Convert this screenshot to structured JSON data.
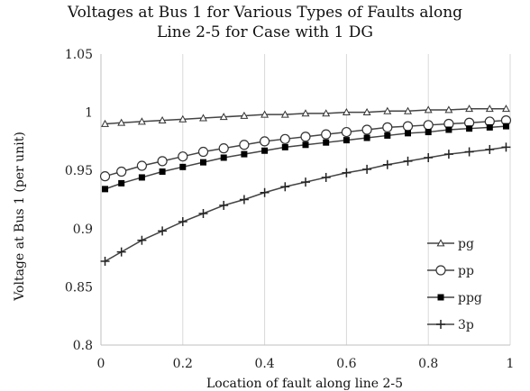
{
  "chart_data": {
    "type": "line",
    "title": [
      "Voltages at Bus 1 for Various Types of  Faults along",
      "Line 2-5 for Case  with 1 DG"
    ],
    "xlabel": "Location of fault along line 2-5",
    "ylabel": "Voltage at Bus 1 (per unit)",
    "xlim": [
      0,
      1
    ],
    "ylim": [
      0.8,
      1.05
    ],
    "x_ticks": [
      "0",
      "0.2",
      "0.4",
      "0.6",
      "0.8",
      "1"
    ],
    "y_ticks": [
      "0.8",
      "0.85",
      "0.9",
      "0.95",
      "1",
      "1.05"
    ],
    "grid": "vertical",
    "legend_position": "bottom-right",
    "x": [
      0.01,
      0.05,
      0.1,
      0.15,
      0.2,
      0.25,
      0.3,
      0.35,
      0.4,
      0.45,
      0.5,
      0.55,
      0.6,
      0.65,
      0.7,
      0.75,
      0.8,
      0.85,
      0.9,
      0.95,
      0.99
    ],
    "series": [
      {
        "name": "pg",
        "marker": "triangle-open",
        "values": [
          0.99,
          0.991,
          0.992,
          0.993,
          0.994,
          0.995,
          0.996,
          0.997,
          0.998,
          0.998,
          0.999,
          0.999,
          1.0,
          1.0,
          1.001,
          1.001,
          1.002,
          1.002,
          1.003,
          1.003,
          1.003
        ]
      },
      {
        "name": "pp",
        "marker": "circle-open",
        "values": [
          0.945,
          0.949,
          0.954,
          0.958,
          0.962,
          0.966,
          0.969,
          0.972,
          0.975,
          0.977,
          0.979,
          0.981,
          0.983,
          0.985,
          0.987,
          0.988,
          0.989,
          0.99,
          0.991,
          0.992,
          0.993
        ]
      },
      {
        "name": "ppg",
        "marker": "square-filled",
        "values": [
          0.934,
          0.939,
          0.944,
          0.949,
          0.953,
          0.957,
          0.961,
          0.964,
          0.967,
          0.97,
          0.972,
          0.974,
          0.976,
          0.978,
          0.98,
          0.982,
          0.983,
          0.985,
          0.986,
          0.987,
          0.988
        ]
      },
      {
        "name": "3p",
        "marker": "plus",
        "values": [
          0.872,
          0.88,
          0.89,
          0.898,
          0.906,
          0.913,
          0.92,
          0.925,
          0.931,
          0.936,
          0.94,
          0.944,
          0.948,
          0.951,
          0.955,
          0.958,
          0.961,
          0.964,
          0.966,
          0.968,
          0.97
        ]
      }
    ]
  }
}
